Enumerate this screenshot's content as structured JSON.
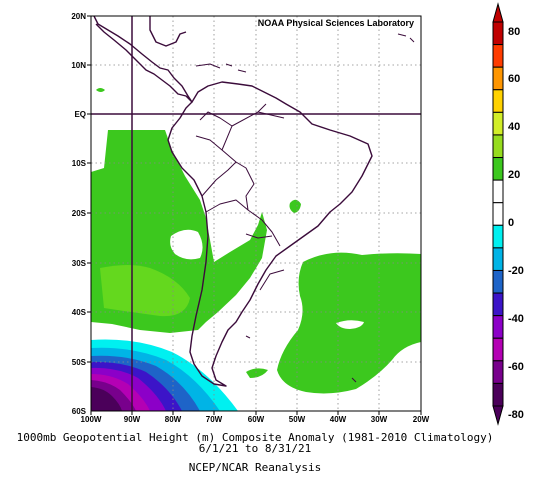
{
  "map": {
    "credit": "NOAA Physical Sciences Laboratory",
    "lat_labels": [
      "20N",
      "10N",
      "EQ",
      "10S",
      "20S",
      "30S",
      "40S",
      "50S",
      "60S"
    ],
    "lon_labels": [
      "100W",
      "90W",
      "80W",
      "70W",
      "60W",
      "50W",
      "40W",
      "30W",
      "20W"
    ],
    "extent": {
      "lon": [
        -100,
        -20
      ],
      "lat": [
        -60,
        20
      ]
    },
    "reference_lines": {
      "equator": "EQ",
      "meridian": "90W"
    }
  },
  "colorbar": {
    "ticks": [
      "80",
      "60",
      "40",
      "20",
      "0",
      "-20",
      "-40",
      "-60",
      "-80"
    ],
    "colors": [
      "#c00000",
      "#ff3c00",
      "#ff9600",
      "#ffd200",
      "#d2ee28",
      "#96dc1e",
      "#3cc81e",
      "#ffffff",
      "#ffffff",
      "#00f0f0",
      "#00b4e6",
      "#1e64c8",
      "#3c14c8",
      "#8c00c8",
      "#b400b4",
      "#78008c",
      "#4b005a"
    ]
  },
  "caption": {
    "line1": "1000mb Geopotential Height (m) Composite Anomaly (1981-2010 Climatology)",
    "line2": "6/1/21 to 8/31/21",
    "line3": "NCEP/NCAR Reanalysis"
  }
}
